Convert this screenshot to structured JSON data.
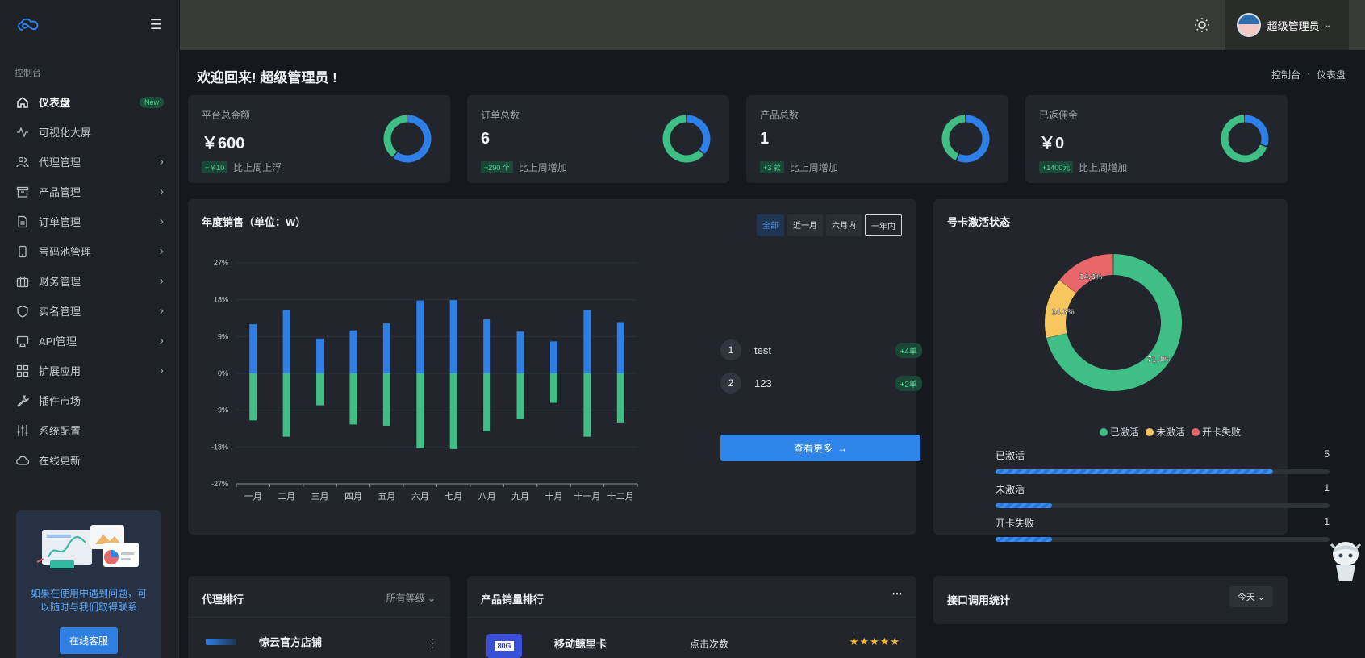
{
  "sidebar": {
    "section": "控制台",
    "items": [
      {
        "label": "仪表盘",
        "badge": "New",
        "icon": "home-icon"
      },
      {
        "label": "可视化大屏",
        "icon": "activity-icon"
      },
      {
        "label": "代理管理",
        "icon": "users-icon"
      },
      {
        "label": "产品管理",
        "icon": "archive-icon"
      },
      {
        "label": "订单管理",
        "icon": "file-icon"
      },
      {
        "label": "号码池管理",
        "icon": "phone-icon"
      },
      {
        "label": "财务管理",
        "icon": "briefcase-icon"
      },
      {
        "label": "实名管理",
        "icon": "shield-icon"
      },
      {
        "label": "API管理",
        "icon": "monitor-icon"
      },
      {
        "label": "扩展应用",
        "icon": "grid-icon"
      },
      {
        "label": "插件市场",
        "icon": "tool-icon"
      },
      {
        "label": "系统配置",
        "icon": "sliders-icon"
      },
      {
        "label": "在线更新",
        "icon": "cloud-icon"
      }
    ],
    "promo": {
      "text": "如果在使用中遇到问题，可以随时与我们取得联系",
      "button": "在线客服"
    }
  },
  "topbar": {
    "user_name": "超级管理员"
  },
  "page": {
    "welcome": "欢迎回来! 超级管理员 !",
    "breadcrumb": [
      "控制台",
      "仪表盘"
    ]
  },
  "stats": [
    {
      "title": "平台总金额",
      "value": "￥600",
      "delta": "+￥10",
      "note": "比上周上浮",
      "ratio": 0.6
    },
    {
      "title": "订单总数",
      "value": "6",
      "delta": "+290 个",
      "note": "比上周增加",
      "ratio": 0.36
    },
    {
      "title": "产品总数",
      "value": "1",
      "delta": "+3 款",
      "note": "比上周增加",
      "ratio": 0.56
    },
    {
      "title": "已返佣金",
      "value": "￥0",
      "delta": "+1400元",
      "note": "比上周增加",
      "ratio": 0.3
    }
  ],
  "colors": {
    "blue": "#2e7fe8",
    "green": "#3fbe86",
    "yellow": "#f7c55e",
    "red": "#e8676a"
  },
  "sales": {
    "title": "年度销售（单位：W）",
    "ranges": [
      "全部",
      "近一月",
      "六月内",
      "一年内"
    ],
    "ranking": [
      {
        "rank": "1",
        "name": "test",
        "pill": "+4单"
      },
      {
        "rank": "2",
        "name": "123",
        "pill": "+2单"
      }
    ],
    "more": "查看更多"
  },
  "chart_data": {
    "type": "bar",
    "title": "年度销售（单位：W）",
    "categories": [
      "一月",
      "二月",
      "三月",
      "四月",
      "五月",
      "六月",
      "七月",
      "八月",
      "九月",
      "十月",
      "十一月",
      "十二月"
    ],
    "series": [
      {
        "values": [
          12,
          15.5,
          8.5,
          10.5,
          12.2,
          17.8,
          17.9,
          13.2,
          10.2,
          7.8,
          15.5,
          12.5
        ]
      },
      {
        "values": [
          -11.5,
          -15.5,
          -7.8,
          -12.5,
          -12.8,
          -18.3,
          -18.5,
          -14.2,
          -11.2,
          -7.2,
          -15.5,
          -12
        ]
      }
    ],
    "ylim": [
      -27,
      27
    ],
    "yticks": [
      "27%",
      "18%",
      "9%",
      "0%",
      "-9%",
      "-18%",
      "-27%"
    ]
  },
  "activation": {
    "title": "号卡激活状态",
    "slices": [
      {
        "name": "已激活",
        "pct": 71.4,
        "label": "71.4%"
      },
      {
        "name": "未激活",
        "pct": 14.3,
        "label": "14.3%"
      },
      {
        "name": "开卡失败",
        "pct": 14.3,
        "label": "14.3%"
      }
    ],
    "rows": [
      {
        "name": "已激活",
        "count": "5",
        "ratio": 0.83
      },
      {
        "name": "未激活",
        "count": "1",
        "ratio": 0.17
      },
      {
        "name": "开卡失败",
        "count": "1",
        "ratio": 0.17
      }
    ]
  },
  "agent_rank": {
    "title": "代理排行",
    "filter": "所有等级",
    "first": "惊云官方店铺"
  },
  "product_rank": {
    "title": "产品销量排行",
    "menu": "···",
    "first": "移动鲸里卡",
    "clicks": "点击次数",
    "badge": "80G",
    "stars": "★★★★★"
  },
  "api_stats": {
    "title": "接口调用统计",
    "range": "今天"
  }
}
